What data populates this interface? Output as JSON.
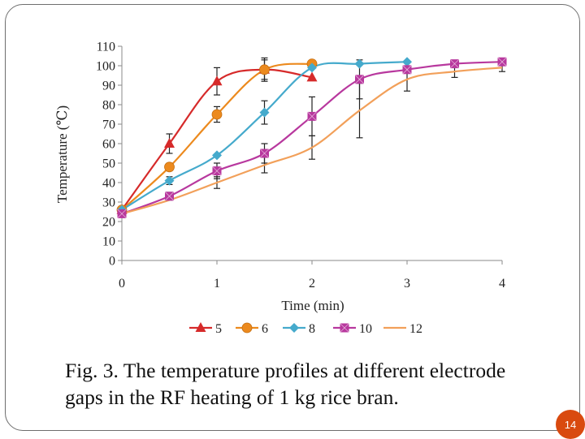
{
  "caption": {
    "line1": "Fig. 3. The temperature profiles at different electrode",
    "line2": "gaps in the RF heating of 1 kg rice bran."
  },
  "page_number": "14",
  "chart_data": {
    "type": "line",
    "xlabel": "Time (min)",
    "ylabel": "Temperature (℃)",
    "xlim": [
      0,
      4
    ],
    "ylim": [
      0,
      110
    ],
    "x_ticks": [
      "0",
      "1",
      "2",
      "3",
      "4"
    ],
    "y_ticks": [
      "0",
      "10",
      "20",
      "30",
      "40",
      "50",
      "60",
      "70",
      "80",
      "90",
      "100",
      "110"
    ],
    "grid": false,
    "legend_position": "bottom",
    "series": [
      {
        "name": "5",
        "color": "#d62a2a",
        "marker": "triangle",
        "x": [
          0,
          0.5,
          1,
          1.5,
          2
        ],
        "y": [
          26,
          60,
          92,
          98,
          94
        ],
        "err": [
          0,
          5,
          7,
          5,
          0
        ]
      },
      {
        "name": "6",
        "color": "#ec8a1e",
        "marker": "circle",
        "x": [
          0,
          0.5,
          1,
          1.5,
          2
        ],
        "y": [
          26,
          48,
          75,
          98,
          101
        ],
        "err": [
          0,
          0,
          4,
          6,
          0
        ]
      },
      {
        "name": "8",
        "color": "#45aacc",
        "marker": "diamond",
        "x": [
          0,
          0.5,
          1,
          1.5,
          2,
          2.5,
          3
        ],
        "y": [
          26,
          41,
          54,
          76,
          99,
          101,
          102
        ],
        "err": [
          0,
          2,
          0,
          6,
          0,
          0,
          0
        ]
      },
      {
        "name": "10",
        "color": "#b8389e",
        "marker": "square",
        "x": [
          0,
          0.5,
          1,
          1.5,
          2,
          2.5,
          3,
          3.5,
          4
        ],
        "y": [
          24,
          33,
          46,
          55,
          74,
          93,
          98,
          101,
          102
        ],
        "err": [
          0,
          2,
          4,
          5,
          10,
          10,
          0,
          0,
          0
        ]
      },
      {
        "name": "12",
        "color": "#f2a05a",
        "marker": "none",
        "x": [
          0,
          0.5,
          1,
          1.5,
          2,
          2.5,
          3,
          3.5,
          4
        ],
        "y": [
          24,
          31,
          40,
          49,
          58,
          77,
          93,
          97,
          99
        ],
        "err": [
          0,
          0,
          3,
          4,
          6,
          14,
          6,
          3,
          2
        ]
      }
    ]
  }
}
